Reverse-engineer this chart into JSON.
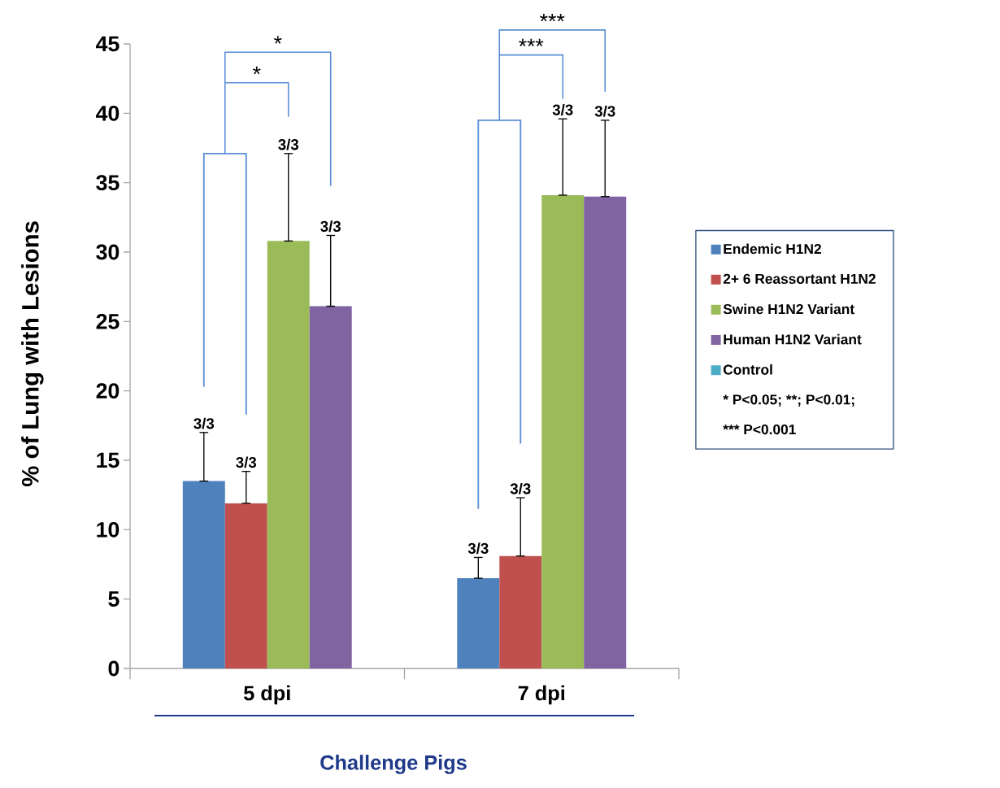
{
  "chart_data": {
    "type": "bar",
    "categories": [
      "5 dpi",
      "7 dpi"
    ],
    "xlabel": "Challenge Pigs",
    "ylabel": "% of Lung with Lesions",
    "ylim": [
      0,
      45
    ],
    "yticks": [
      0,
      5,
      10,
      15,
      20,
      25,
      30,
      35,
      40,
      45
    ],
    "legend": "right",
    "series": [
      {
        "name": "Endemic H1N2",
        "color": "#4f81bd",
        "values": [
          13.5,
          6.5
        ],
        "errors": [
          [
            13.5,
            17.0
          ],
          [
            6.5,
            8.0
          ]
        ]
      },
      {
        "name": "2+ 6 Reassortant H1N2",
        "color": "#c0504d",
        "values": [
          11.9,
          8.1
        ],
        "errors": [
          [
            11.9,
            14.2
          ],
          [
            8.1,
            12.3
          ]
        ]
      },
      {
        "name": "Swine H1N2 Variant",
        "color": "#9bbb59",
        "values": [
          30.8,
          34.1
        ],
        "errors": [
          [
            30.8,
            37.1
          ],
          [
            34.1,
            39.6
          ]
        ]
      },
      {
        "name": "Human H1N2 Variant",
        "color": "#8064a2",
        "values": [
          26.1,
          34.0
        ],
        "errors": [
          [
            26.1,
            31.2
          ],
          [
            34.0,
            39.5
          ]
        ]
      },
      {
        "name": "Control",
        "color": "#4bacc6",
        "values": [
          null,
          null
        ]
      }
    ],
    "annotations": [
      "*",
      "*",
      "***",
      "***",
      "* P<0.05; **; P<0.01;",
      "*** P<0.001",
      "3/3",
      "3/3",
      "3/3",
      "3/3",
      "3/3",
      "3/3",
      "3/3",
      "3/3"
    ]
  }
}
